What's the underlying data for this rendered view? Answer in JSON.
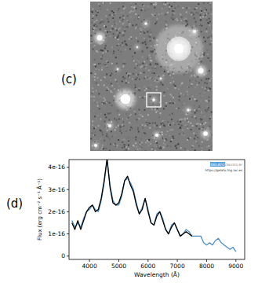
{
  "panel_labels": [
    "(c)",
    "(d)"
  ],
  "chart_data": {
    "type": "line",
    "x_label": "Wavelength (Å)",
    "y_label": "Flux (erg cm⁻² s⁻¹ Å⁻¹)",
    "annotations": [
      "GELATO",
      "CREATED BY",
      "https://gelato.tng.iac.es"
    ],
    "x": [
      3400,
      3500,
      3600,
      3700,
      3800,
      3900,
      4000,
      4100,
      4200,
      4300,
      4400,
      4500,
      4600,
      4700,
      4800,
      4900,
      5000,
      5100,
      5200,
      5300,
      5400,
      5500,
      5600,
      5700,
      5800,
      5900,
      6000,
      6100,
      6200,
      6300,
      6400,
      6500,
      6600,
      6700,
      6800,
      6900,
      7000,
      7100,
      7200,
      7300,
      7400,
      7500,
      7600,
      7700,
      7800,
      7900,
      8000,
      8100,
      8200,
      8300,
      8400,
      8500,
      8600,
      8700,
      8800,
      8900,
      9000
    ],
    "series": [
      {
        "color": "#4a8fc9",
        "values": [
          1.6e-16,
          1.3e-16,
          1.5e-16,
          1.3e-16,
          1.7e-16,
          2e-16,
          2.1e-16,
          2.3e-16,
          2.1e-16,
          2e-16,
          2.5e-16,
          3.3e-16,
          4.3e-16,
          3.2e-16,
          2.5e-16,
          2.3e-16,
          2.3e-16,
          2.7e-16,
          3.4e-16,
          3.5e-16,
          3.3e-16,
          3e-16,
          2.4e-16,
          1.9e-16,
          2.2e-16,
          2.6e-16,
          2.1e-16,
          1.5e-16,
          1.4e-16,
          1.9e-16,
          2e-16,
          1.7e-16,
          1.2e-16,
          1e-16,
          1.4e-16,
          1.5e-16,
          1.2e-16,
          9e-17,
          1e-16,
          1.2e-16,
          1.1e-16,
          9e-17,
          9e-17,
          9e-17,
          9e-17,
          6e-17,
          5e-17,
          6e-17,
          5e-17,
          7e-17,
          8e-17,
          6e-17,
          5e-17,
          4e-17,
          3e-17,
          4e-17,
          2e-17
        ]
      },
      {
        "color": "#000000",
        "values": [
          1.5e-16,
          1.2e-16,
          1.6e-16,
          1.2e-16,
          1.6e-16,
          2e-16,
          2.2e-16,
          2.3e-16,
          2e-16,
          2.1e-16,
          2.6e-16,
          3.4e-16,
          4.4e-16,
          3.1e-16,
          2.4e-16,
          2.3e-16,
          2.4e-16,
          2.8e-16,
          3.4e-16,
          3.6e-16,
          3.2e-16,
          2.9e-16,
          2.3e-16,
          1.9e-16,
          2.1e-16,
          2.6e-16,
          2e-16,
          1.5e-16,
          1.4e-16,
          1.8e-16,
          2e-16,
          1.6e-16,
          1.2e-16,
          1e-16,
          1.3e-16,
          1.5e-16,
          1.2e-16,
          9e-17,
          1e-16,
          1.1e-16,
          1e-16,
          9e-17,
          null,
          null,
          null,
          null,
          null,
          null,
          null,
          null,
          null,
          null,
          null,
          null,
          null,
          null,
          null
        ]
      }
    ],
    "xlim": [
      3300,
      9300
    ],
    "ylim": [
      -1.5e-17,
      4.35e-16
    ],
    "xticks": [
      4000,
      5000,
      6000,
      7000,
      8000,
      9000
    ],
    "yticks": [
      0,
      {
        "value": 1e-16,
        "label": "1e-16"
      },
      {
        "value": 2e-16,
        "label": "2e-16"
      },
      {
        "value": 3e-16,
        "label": "3e-16"
      },
      {
        "value": 4e-16,
        "label": "4e-16"
      }
    ],
    "grid": false
  }
}
